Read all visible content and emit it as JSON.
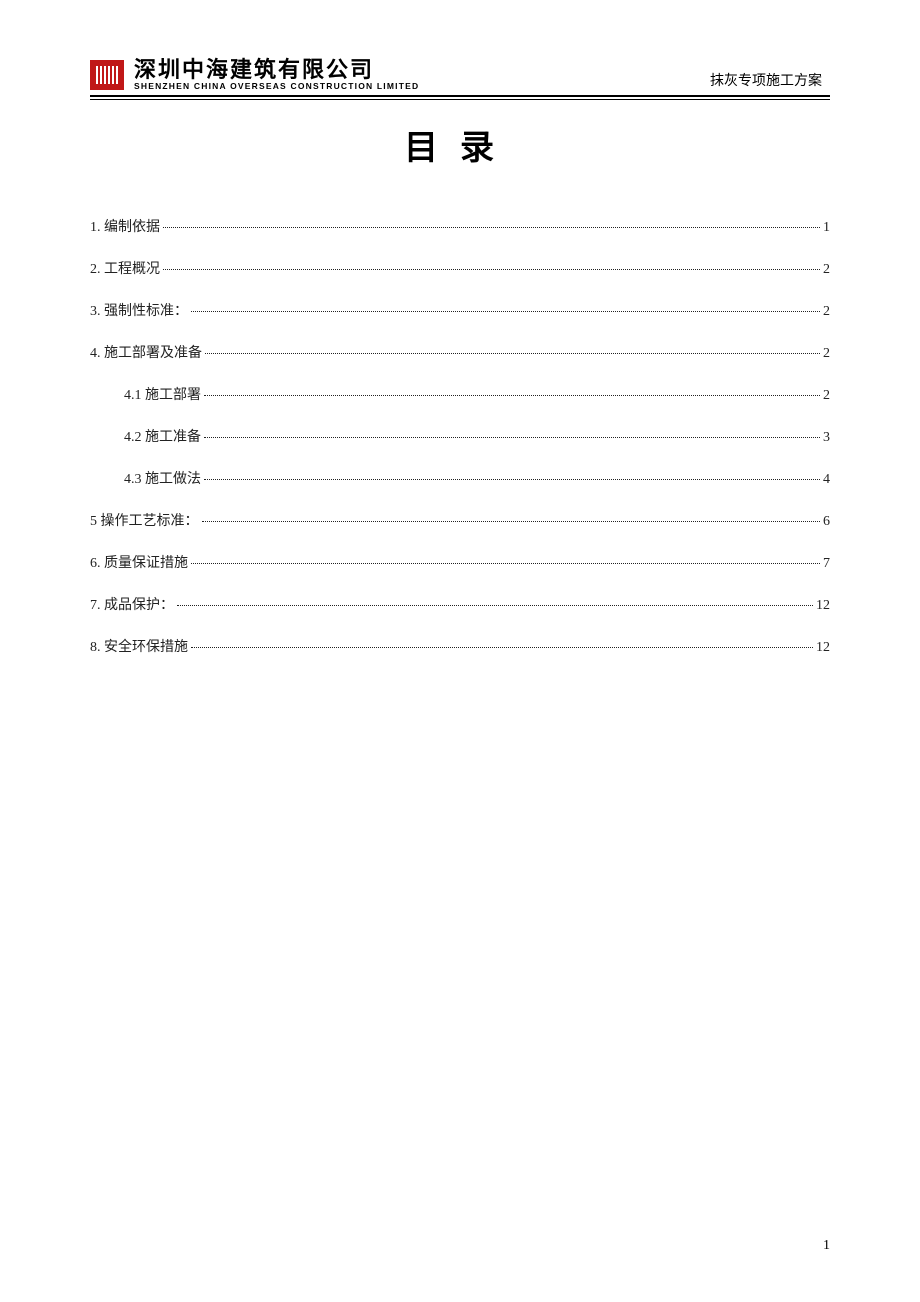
{
  "header": {
    "company_cn": "深圳中海建筑有限公司",
    "company_en": "SHENZHEN CHINA OVERSEAS CONSTRUCTION LIMITED",
    "doc_name": "抹灰专项施工方案"
  },
  "title": "目录",
  "toc": {
    "items": [
      {
        "label": "1. 编制依据",
        "page": "1",
        "sub": false
      },
      {
        "label": "2. 工程概况",
        "page": "2",
        "sub": false
      },
      {
        "label": "3. 强制性标准：",
        "page": "2",
        "sub": false
      },
      {
        "label": "4. 施工部署及准备",
        "page": "2",
        "sub": false
      },
      {
        "label": "4.1 施工部署",
        "page": "2",
        "sub": true
      },
      {
        "label": "4.2 施工准备",
        "page": "3",
        "sub": true
      },
      {
        "label": "4.3 施工做法",
        "page": "4",
        "sub": true
      },
      {
        "label": "5 操作工艺标准：",
        "page": "6",
        "sub": false
      },
      {
        "label": "6. 质量保证措施",
        "page": "7",
        "sub": false
      },
      {
        "label": "7. 成品保护：",
        "page": "12",
        "sub": false
      },
      {
        "label": "8. 安全环保措施",
        "page": "12",
        "sub": false
      }
    ]
  },
  "footer": {
    "page_num": "1"
  },
  "colors": {
    "logo_bg": "#c01818",
    "text": "#000000",
    "bg": "#ffffff"
  }
}
